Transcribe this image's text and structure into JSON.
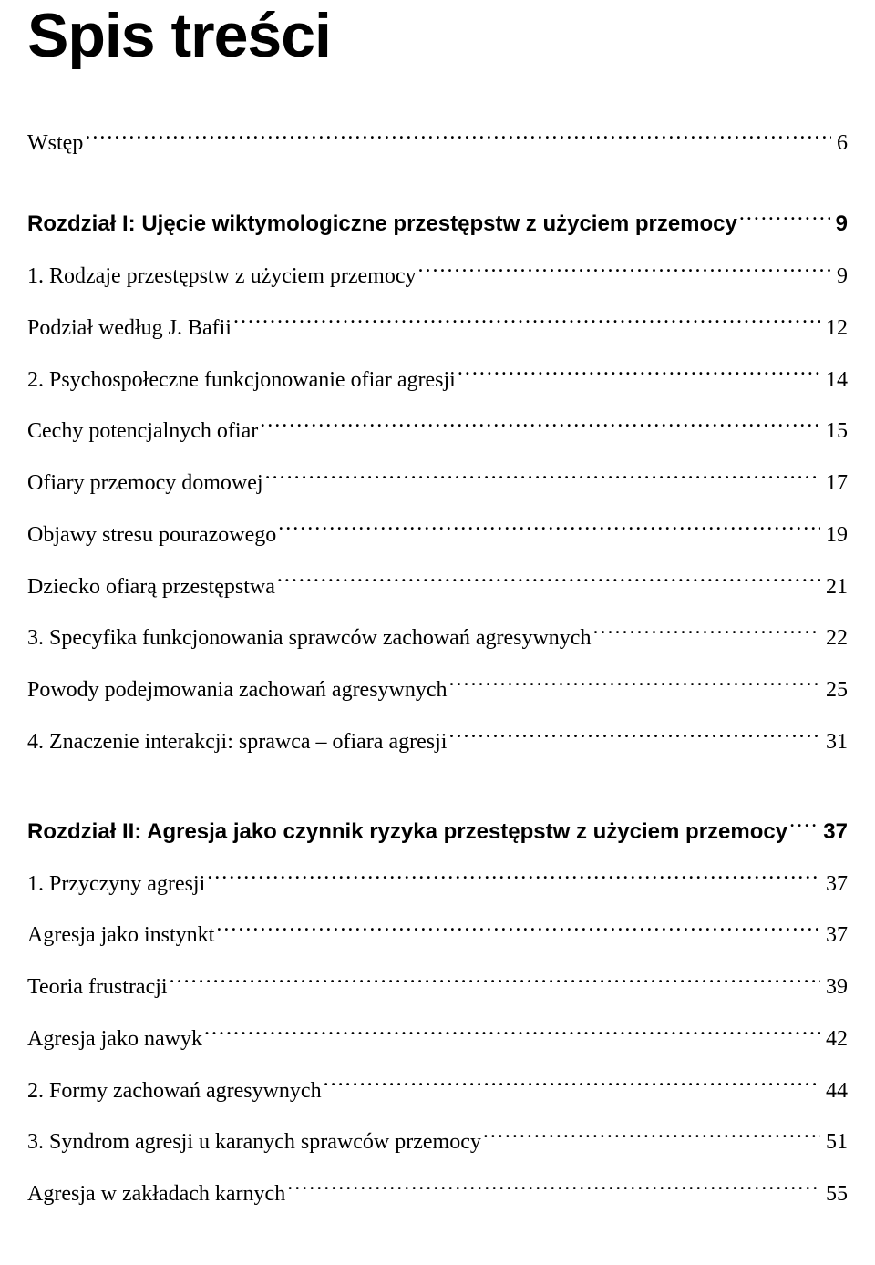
{
  "title": "Spis treści",
  "colors": {
    "text": "#000000",
    "background": "#ffffff"
  },
  "typography": {
    "title_font": "Arial, sans-serif",
    "title_size_pt": 51,
    "title_weight": 900,
    "body_font": "Georgia, serif",
    "body_size_pt": 18,
    "heading_font": "Arial, sans-serif",
    "heading_weight": 800
  },
  "toc": [
    {
      "label": "Wstęp",
      "page": "6",
      "style": "serif",
      "space_before": 0
    },
    {
      "label": "Rozdział I: Ujęcie wiktymologiczne przestępstw z użyciem przemocy",
      "page": "9",
      "style": "sans-bold",
      "space_before": 50
    },
    {
      "label": "1. Rodzaje przestępstw z użyciem przemocy",
      "page": "9",
      "style": "serif",
      "space_before": 0
    },
    {
      "label": "Podział według J. Bafii",
      "page": "12",
      "style": "serif",
      "space_before": 0
    },
    {
      "label": "2. Psychospołeczne funkcjonowanie ofiar agresji",
      "page": "14",
      "style": "serif",
      "space_before": 0
    },
    {
      "label": "Cechy potencjalnych ofiar",
      "page": "15",
      "style": "serif",
      "space_before": 0
    },
    {
      "label": "Ofiary przemocy domowej",
      "page": "17",
      "style": "serif",
      "space_before": 0
    },
    {
      "label": "Objawy stresu pourazowego",
      "page": "19",
      "style": "serif",
      "space_before": 0
    },
    {
      "label": "Dziecko ofiarą przestępstwa",
      "page": "21",
      "style": "serif",
      "space_before": 0
    },
    {
      "label": "3. Specyfika funkcjonowania sprawców zachowań agresywnych",
      "page": "22",
      "style": "serif",
      "space_before": 0
    },
    {
      "label": "Powody podejmowania zachowań agresywnych",
      "page": "25",
      "style": "serif",
      "space_before": 0
    },
    {
      "label": "4. Znaczenie interakcji: sprawca – ofiara agresji",
      "page": "31",
      "style": "serif",
      "space_before": 0
    },
    {
      "label": "Rozdział II: Agresja jako czynnik ryzyka przestępstw z użyciem przemocy",
      "page": "37",
      "style": "sans-bold",
      "space_before": 60
    },
    {
      "label": "1. Przyczyny agresji",
      "page": "37",
      "style": "serif",
      "space_before": 0
    },
    {
      "label": "Agresja jako instynkt",
      "page": "37",
      "style": "serif",
      "space_before": 0
    },
    {
      "label": "Teoria frustracji",
      "page": "39",
      "style": "serif",
      "space_before": 0
    },
    {
      "label": "Agresja jako nawyk",
      "page": "42",
      "style": "serif",
      "space_before": 0
    },
    {
      "label": "2. Formy zachowań agresywnych",
      "page": "44",
      "style": "serif",
      "space_before": 0
    },
    {
      "label": "3. Syndrom agresji u karanych sprawców przemocy",
      "page": "51",
      "style": "serif",
      "space_before": 0
    },
    {
      "label": "Agresja w zakładach karnych",
      "page": "55",
      "style": "serif",
      "space_before": 0
    }
  ]
}
